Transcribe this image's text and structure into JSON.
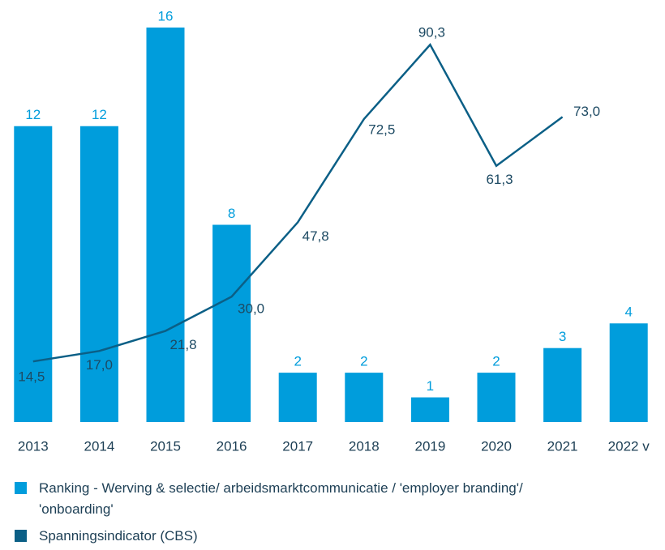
{
  "chart_data": {
    "type": "bar",
    "categories": [
      "2013",
      "2014",
      "2015",
      "2016",
      "2017",
      "2018",
      "2019",
      "2020",
      "2021",
      "2022 v"
    ],
    "series": [
      {
        "name": "Ranking - Werving & selectie/ arbeidsmarktcommunicatie / 'employer branding'/ 'onboarding'",
        "type": "bar",
        "color": "#009ddc",
        "values": [
          12,
          12,
          16,
          8,
          2,
          2,
          1,
          2,
          3,
          4
        ]
      },
      {
        "name": "Spanningsindicator (CBS)",
        "type": "line",
        "axis": "y2",
        "color": "#0b5f86",
        "values": [
          14.5,
          17.0,
          21.8,
          30.0,
          47.8,
          72.5,
          90.3,
          61.3,
          73.0,
          null
        ],
        "value_labels": [
          "14,5",
          "17,0",
          "21,8",
          "30,0",
          "47,8",
          "72,5",
          "90,3",
          "61,3",
          "73,0",
          null
        ]
      }
    ],
    "ylim": [
      0,
      16
    ],
    "y2lim": [
      0,
      94.4
    ]
  }
}
